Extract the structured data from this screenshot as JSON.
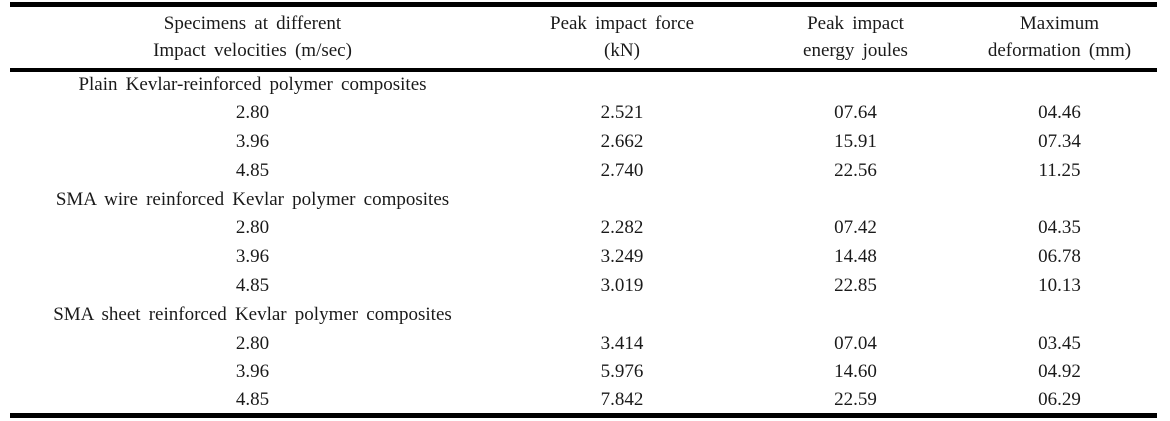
{
  "table": {
    "colors": {
      "text": "#1a1a1a",
      "rule": "#000000",
      "background": "#ffffff"
    },
    "columns": [
      {
        "line1": "Specimens at different",
        "line2": "Impact velocities (m/sec)"
      },
      {
        "line1": "Peak impact force",
        "line2": "(kN)"
      },
      {
        "line1": "Peak impact",
        "line2": "energy joules"
      },
      {
        "line1": "Maximum",
        "line2": "deformation (mm)"
      }
    ],
    "sections": [
      {
        "title": "Plain Kevlar-reinforced polymer composites",
        "rows": [
          {
            "velocity": "2.80",
            "force": "2.521",
            "energy": "07.64",
            "deformation": "04.46"
          },
          {
            "velocity": "3.96",
            "force": "2.662",
            "energy": "15.91",
            "deformation": "07.34"
          },
          {
            "velocity": "4.85",
            "force": "2.740",
            "energy": "22.56",
            "deformation": "11.25"
          }
        ]
      },
      {
        "title": "SMA wire reinforced Kevlar polymer composites",
        "rows": [
          {
            "velocity": "2.80",
            "force": "2.282",
            "energy": "07.42",
            "deformation": "04.35"
          },
          {
            "velocity": "3.96",
            "force": "3.249",
            "energy": "14.48",
            "deformation": "06.78"
          },
          {
            "velocity": "4.85",
            "force": "3.019",
            "energy": "22.85",
            "deformation": "10.13"
          }
        ]
      },
      {
        "title": "SMA sheet reinforced Kevlar polymer composites",
        "rows": [
          {
            "velocity": "2.80",
            "force": "3.414",
            "energy": "07.04",
            "deformation": "03.45"
          },
          {
            "velocity": "3.96",
            "force": "5.976",
            "energy": "14.60",
            "deformation": "04.92"
          },
          {
            "velocity": "4.85",
            "force": "7.842",
            "energy": "22.59",
            "deformation": "06.29"
          }
        ]
      }
    ]
  }
}
